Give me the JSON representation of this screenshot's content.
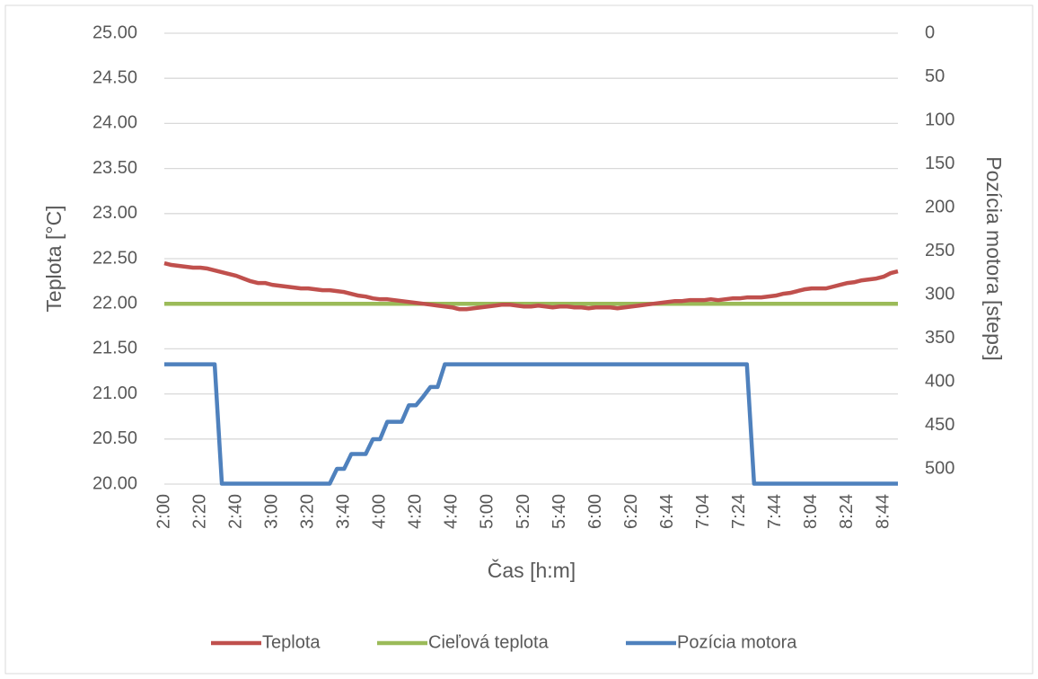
{
  "chart_data": {
    "type": "line",
    "x_label": "Čas [h:m]",
    "y_label": "Teplota [°C]",
    "y2_label": "Pozícia motora [steps]",
    "categories": [
      "2:00",
      null,
      null,
      null,
      null,
      "2:20",
      null,
      null,
      null,
      null,
      "2:40",
      null,
      null,
      null,
      null,
      "3:00",
      null,
      null,
      null,
      null,
      "3:20",
      null,
      null,
      null,
      null,
      "3:40",
      null,
      null,
      null,
      null,
      "4:00",
      null,
      null,
      null,
      null,
      "4:20",
      null,
      null,
      null,
      null,
      "4:40",
      null,
      null,
      null,
      null,
      "5:00",
      null,
      null,
      null,
      null,
      "5:20",
      null,
      null,
      null,
      null,
      "5:40",
      null,
      null,
      null,
      null,
      "6:00",
      null,
      null,
      null,
      null,
      "6:20",
      null,
      null,
      null,
      null,
      "6:44",
      null,
      null,
      null,
      null,
      "7:04",
      null,
      null,
      null,
      null,
      "7:24",
      null,
      null,
      null,
      null,
      "7:44",
      null,
      null,
      null,
      null,
      "8:04",
      null,
      null,
      null,
      null,
      "8:24",
      null,
      null,
      null,
      null,
      "8:44",
      null,
      null
    ],
    "series": [
      {
        "name": "Teplota",
        "color": "#c0504d",
        "values": [
          22.45,
          22.43,
          22.42,
          22.41,
          22.4,
          22.4,
          22.39,
          22.37,
          22.35,
          22.33,
          22.31,
          22.28,
          22.25,
          22.23,
          22.23,
          22.21,
          22.2,
          22.19,
          22.18,
          22.17,
          22.17,
          22.16,
          22.15,
          22.15,
          22.14,
          22.13,
          22.11,
          22.09,
          22.08,
          22.06,
          22.05,
          22.05,
          22.04,
          22.03,
          22.02,
          22.01,
          22.0,
          21.99,
          21.98,
          21.97,
          21.96,
          21.94,
          21.94,
          21.95,
          21.96,
          21.97,
          21.98,
          21.99,
          21.99,
          21.98,
          21.97,
          21.97,
          21.98,
          21.97,
          21.96,
          21.97,
          21.97,
          21.96,
          21.96,
          21.95,
          21.96,
          21.96,
          21.96,
          21.95,
          21.96,
          21.97,
          21.98,
          21.99,
          22.0,
          22.01,
          22.02,
          22.03,
          22.03,
          22.04,
          22.04,
          22.04,
          22.05,
          22.04,
          22.05,
          22.06,
          22.06,
          22.07,
          22.07,
          22.07,
          22.08,
          22.09,
          22.11,
          22.12,
          22.14,
          22.16,
          22.17,
          22.17,
          22.17,
          22.19,
          22.21,
          22.23,
          22.24,
          22.26,
          22.27,
          22.28,
          22.3,
          22.34,
          22.36
        ]
      },
      {
        "name": "Cieľová teplota",
        "color": "#9bbb59",
        "values": [
          22,
          22,
          22,
          22,
          22,
          22,
          22,
          22,
          22,
          22,
          22,
          22,
          22,
          22,
          22,
          22,
          22,
          22,
          22,
          22,
          22,
          22,
          22,
          22,
          22,
          22,
          22,
          22,
          22,
          22,
          22,
          22,
          22,
          22,
          22,
          22,
          22,
          22,
          22,
          22,
          22,
          22,
          22,
          22,
          22,
          22,
          22,
          22,
          22,
          22,
          22,
          22,
          22,
          22,
          22,
          22,
          22,
          22,
          22,
          22,
          22,
          22,
          22,
          22,
          22,
          22,
          22,
          22,
          22,
          22,
          22,
          22,
          22,
          22,
          22,
          22,
          22,
          22,
          22,
          22,
          22,
          22,
          22,
          22,
          22,
          22,
          22,
          22,
          22,
          22,
          22,
          22,
          22,
          22,
          22,
          22,
          22,
          22,
          22,
          22,
          22,
          22,
          22
        ]
      },
      {
        "name": "Pozícia motora",
        "color": "#4f81bd",
        "axis": "y2",
        "values": [
          380,
          380,
          380,
          380,
          380,
          380,
          380,
          380,
          517,
          517,
          517,
          517,
          517,
          517,
          517,
          517,
          517,
          517,
          517,
          517,
          517,
          517,
          517,
          517,
          500,
          500,
          483,
          483,
          483,
          466,
          466,
          446,
          446,
          446,
          427,
          427,
          417,
          406,
          406,
          380,
          380,
          380,
          380,
          380,
          380,
          380,
          380,
          380,
          380,
          380,
          380,
          380,
          380,
          380,
          380,
          380,
          380,
          380,
          380,
          380,
          380,
          380,
          380,
          380,
          380,
          380,
          380,
          380,
          380,
          380,
          380,
          380,
          380,
          380,
          380,
          380,
          380,
          380,
          380,
          380,
          380,
          380,
          517,
          517,
          517,
          517,
          517,
          517,
          517,
          517,
          517,
          517,
          517,
          517,
          517,
          517,
          517,
          517,
          517,
          517,
          517,
          517,
          517
        ]
      }
    ],
    "ylim": [
      20,
      25
    ],
    "yticks": [
      {
        "value": 20,
        "label": "20.00"
      },
      {
        "value": 20.5,
        "label": "20.50"
      },
      {
        "value": 21,
        "label": "21.00"
      },
      {
        "value": 21.5,
        "label": "21.50"
      },
      {
        "value": 22,
        "label": "22.00"
      },
      {
        "value": 22.5,
        "label": "22.50"
      },
      {
        "value": 23,
        "label": "23.00"
      },
      {
        "value": 23.5,
        "label": "23.50"
      },
      {
        "value": 24,
        "label": "24.00"
      },
      {
        "value": 24.5,
        "label": "24.50"
      },
      {
        "value": 25,
        "label": "25.00"
      }
    ],
    "y2lim": [
      517.5,
      0
    ],
    "y2ticks": [
      0,
      50,
      100,
      150,
      200,
      250,
      300,
      350,
      400,
      450,
      500
    ],
    "grid": true,
    "legend": "bottom"
  }
}
